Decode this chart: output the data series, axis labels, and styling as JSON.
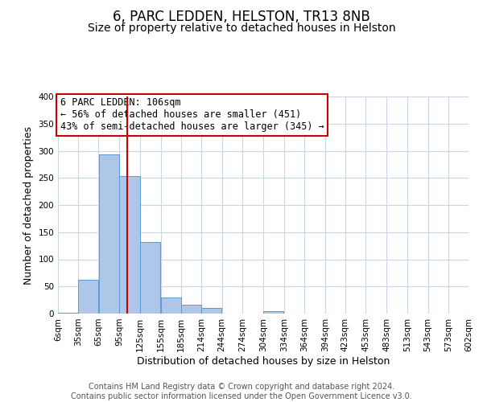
{
  "title": "6, PARC LEDDEN, HELSTON, TR13 8NB",
  "subtitle": "Size of property relative to detached houses in Helston",
  "xlabel": "Distribution of detached houses by size in Helston",
  "ylabel": "Number of detached properties",
  "bar_left_edges": [
    6,
    35,
    65,
    95,
    125,
    155,
    185,
    214,
    244,
    274,
    304,
    334,
    364,
    394,
    423,
    453,
    483,
    513,
    543,
    573
  ],
  "bar_widths": [
    29,
    30,
    30,
    30,
    30,
    30,
    29,
    30,
    30,
    30,
    30,
    30,
    30,
    29,
    30,
    30,
    30,
    30,
    30,
    29
  ],
  "bar_heights": [
    2,
    62,
    293,
    253,
    132,
    30,
    17,
    11,
    0,
    0,
    4,
    0,
    0,
    0,
    0,
    0,
    0,
    0,
    0,
    0
  ],
  "bar_color": "#aec6e8",
  "bar_edgecolor": "#5b9bd5",
  "vline_x": 106,
  "vline_color": "#cc0000",
  "annotation_text": "6 PARC LEDDEN: 106sqm\n← 56% of detached houses are smaller (451)\n43% of semi-detached houses are larger (345) →",
  "annotation_box_edgecolor": "#cc0000",
  "annotation_box_facecolor": "#ffffff",
  "ylim": [
    0,
    400
  ],
  "yticks": [
    0,
    50,
    100,
    150,
    200,
    250,
    300,
    350,
    400
  ],
  "xtick_labels": [
    "6sqm",
    "35sqm",
    "65sqm",
    "95sqm",
    "125sqm",
    "155sqm",
    "185sqm",
    "214sqm",
    "244sqm",
    "274sqm",
    "304sqm",
    "334sqm",
    "364sqm",
    "394sqm",
    "423sqm",
    "453sqm",
    "483sqm",
    "513sqm",
    "543sqm",
    "573sqm",
    "602sqm"
  ],
  "xtick_positions": [
    6,
    35,
    65,
    95,
    125,
    155,
    185,
    214,
    244,
    274,
    304,
    334,
    364,
    394,
    423,
    453,
    483,
    513,
    543,
    573,
    602
  ],
  "footer_text": "Contains HM Land Registry data © Crown copyright and database right 2024.\nContains public sector information licensed under the Open Government Licence v3.0.",
  "background_color": "#ffffff",
  "grid_color": "#c8d4e8",
  "title_fontsize": 12,
  "subtitle_fontsize": 10,
  "axis_label_fontsize": 9,
  "tick_fontsize": 7.5,
  "footer_fontsize": 7,
  "annotation_fontsize": 8.5
}
